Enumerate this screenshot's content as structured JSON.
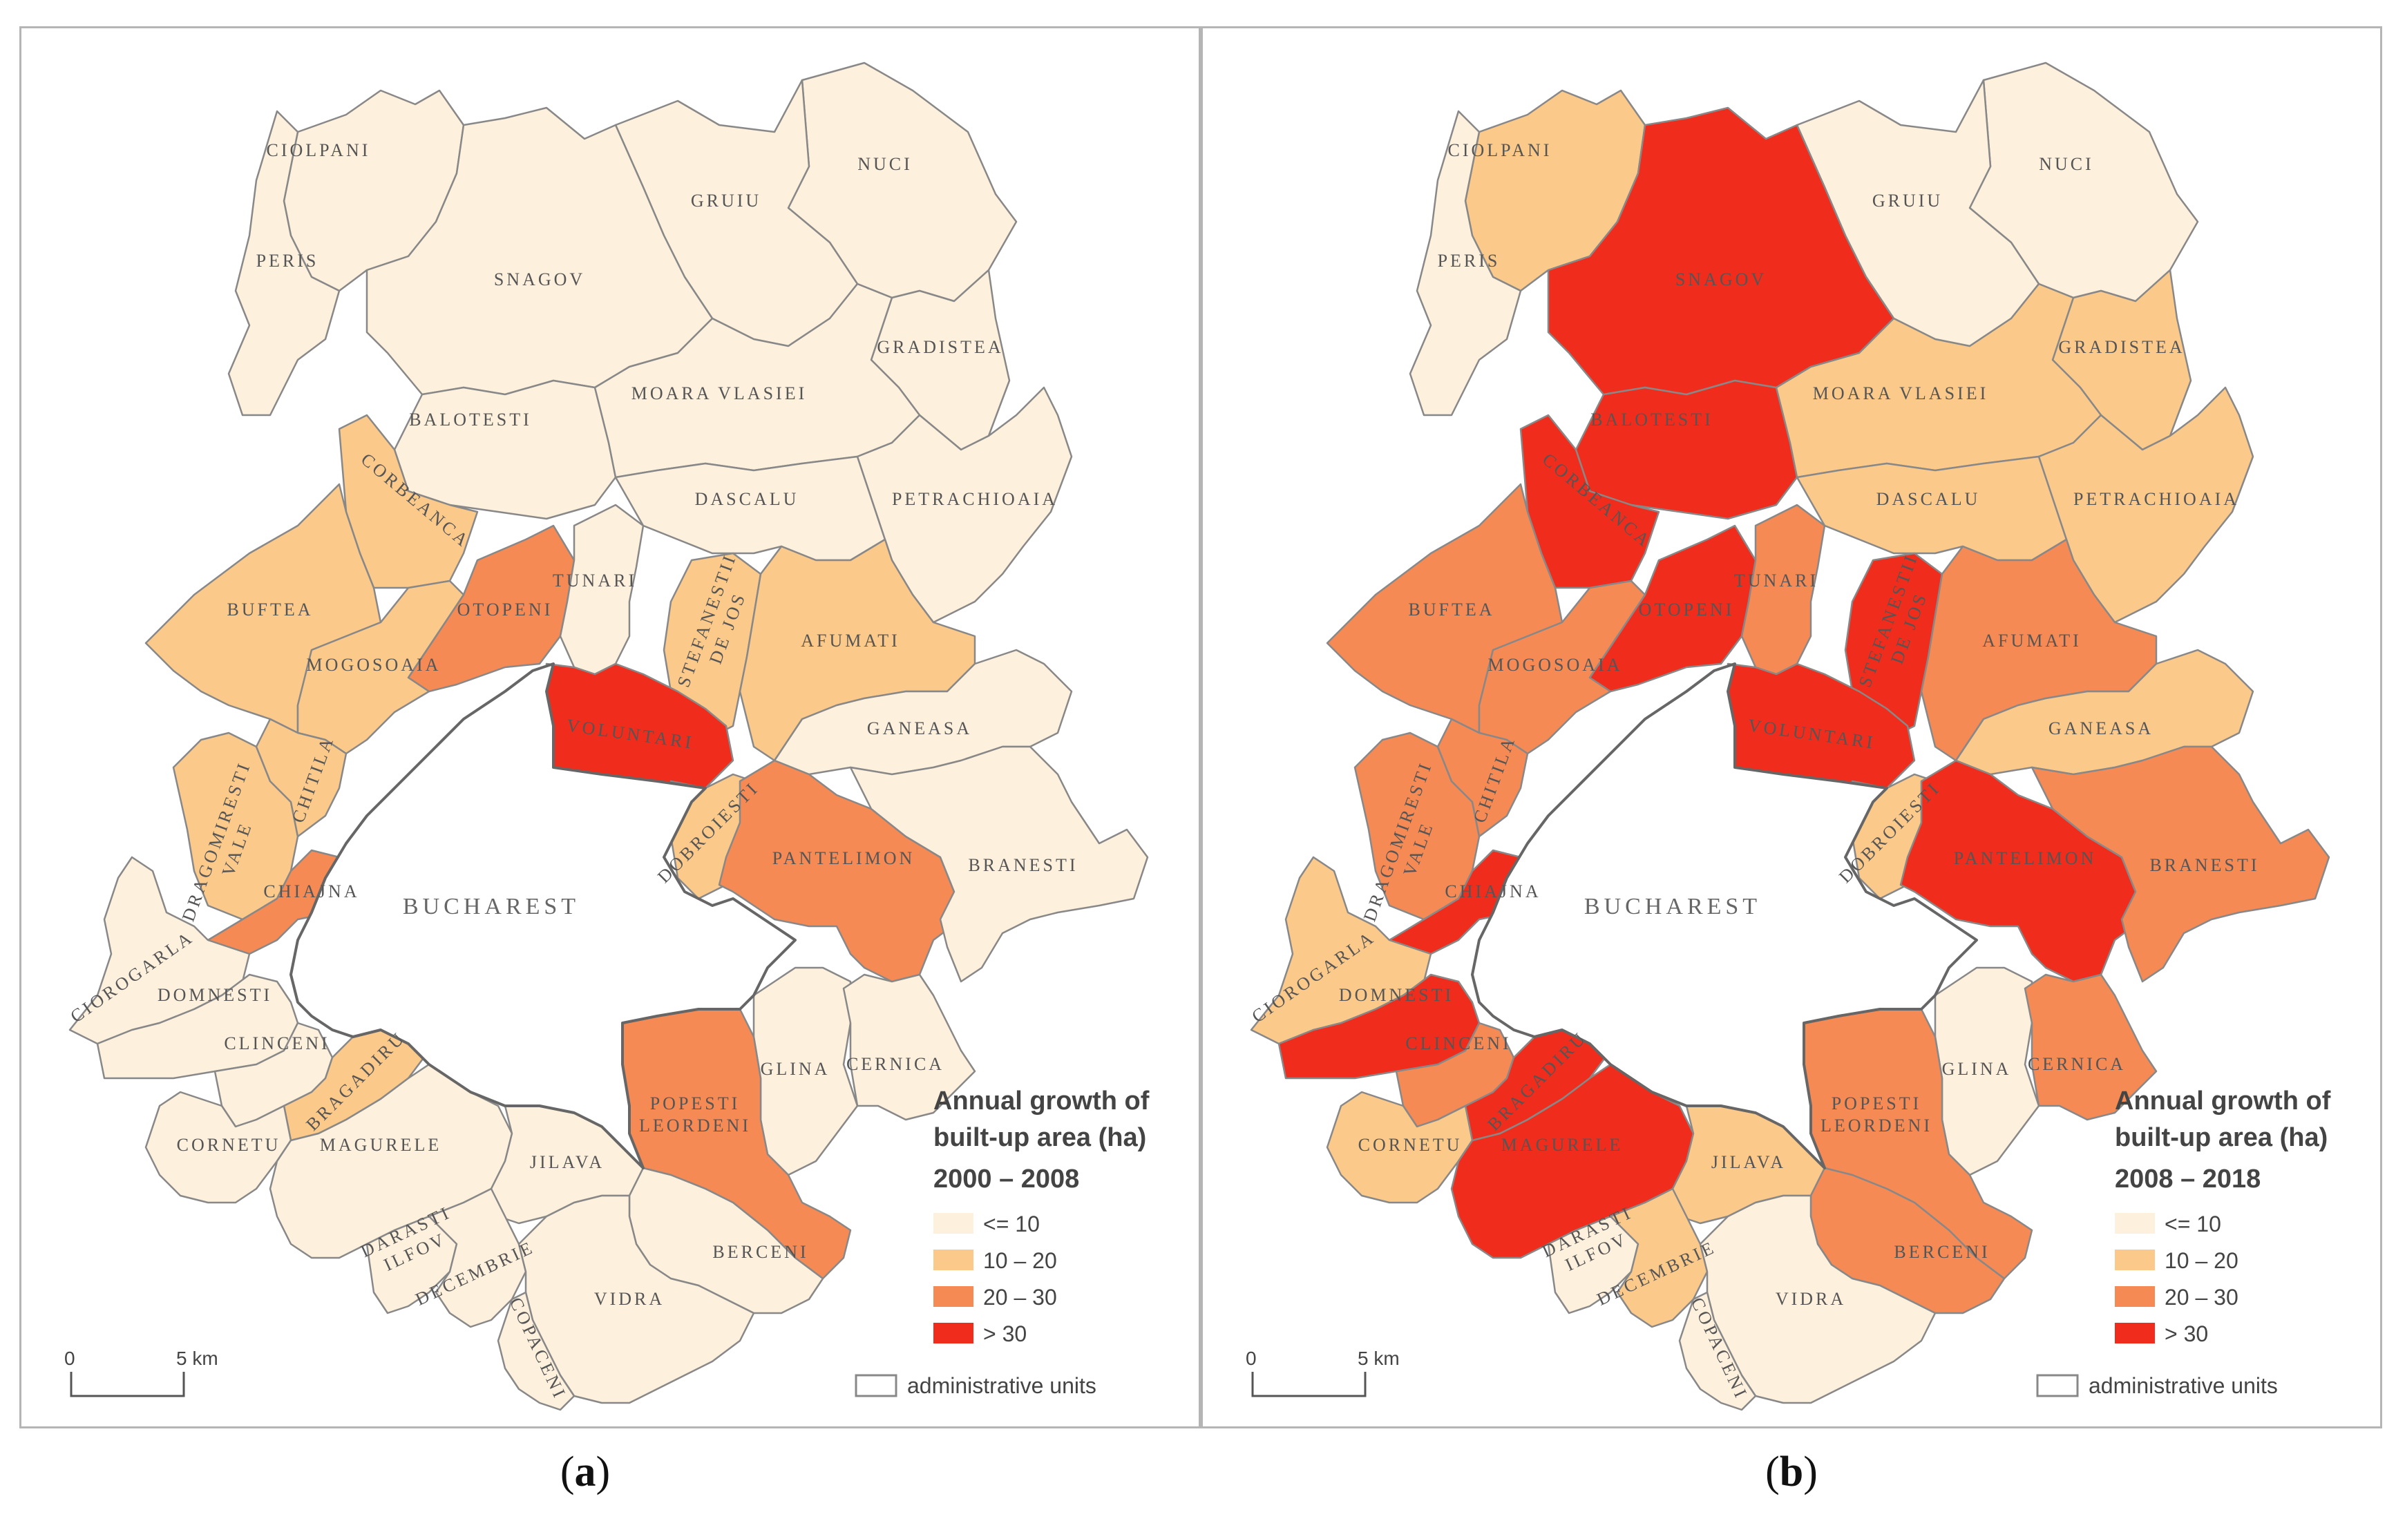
{
  "city": "BUCHAREST",
  "colors": {
    "c1": "#fdf0dd",
    "c2": "#fbc98a",
    "c3": "#f58a55",
    "c4": "#f02d1c",
    "outline": "#888888",
    "city_border": "#666666"
  },
  "legend": {
    "title_line1": "Annual growth of",
    "title_line2": "built-up area (ha)",
    "classes": [
      {
        "key": "c1",
        "label": "<= 10"
      },
      {
        "key": "c2",
        "label": "10 – 20"
      },
      {
        "key": "c3",
        "label": "20 – 30"
      },
      {
        "key": "c4",
        "label": "> 30"
      }
    ],
    "admin_units": "administrative units"
  },
  "scale": {
    "zero": "0",
    "five": "5 km"
  },
  "panels": [
    {
      "id": "a",
      "caption": "a",
      "period": "2000 – 2008",
      "classes": {
        "CIOLPANI": "c1",
        "NUCI": "c1",
        "GRUIU": "c1",
        "PERIS": "c1",
        "SNAGOV": "c1",
        "GRADISTEA": "c1",
        "BALOTESTI": "c1",
        "MOARA VLASIEI": "c1",
        "CORBEANCA": "c2",
        "DASCALU": "c1",
        "PETRACHIOAIA": "c1",
        "BUFTEA": "c2",
        "OTOPENI": "c3",
        "TUNARI": "c1",
        "STEFANESTII DE JOS": "c2",
        "AFUMATI": "c2",
        "MOGOSOAIA": "c2",
        "VOLUNTARI": "c4",
        "GANEASA": "c1",
        "DRAGOMIRESTI VALE": "c2",
        "CHITILA": "c2",
        "DOBROIESTI": "c2",
        "PANTELIMON": "c3",
        "BRANESTI": "c1",
        "CHIAJNA": "c3",
        "CIOROGARLA": "c1",
        "DOMNESTI": "c1",
        "CLINCENI": "c1",
        "BRAGADIRU": "c2",
        "GLINA": "c1",
        "CERNICA": "c1",
        "POPESTI LEORDENI": "c3",
        "CORNETU": "c1",
        "MAGURELE": "c1",
        "JILAVA": "c1",
        "DARASTI ILFOV": "c1",
        "1 DECEMBRIE": "c1",
        "BERCENI": "c1",
        "VIDRA": "c1",
        "COPACENI": "c1"
      }
    },
    {
      "id": "b",
      "caption": "b",
      "period": "2008 – 2018",
      "classes": {
        "CIOLPANI": "c2",
        "NUCI": "c1",
        "GRUIU": "c1",
        "PERIS": "c1",
        "SNAGOV": "c4",
        "GRADISTEA": "c2",
        "BALOTESTI": "c4",
        "MOARA VLASIEI": "c2",
        "CORBEANCA": "c4",
        "DASCALU": "c2",
        "PETRACHIOAIA": "c2",
        "BUFTEA": "c3",
        "OTOPENI": "c4",
        "TUNARI": "c3",
        "STEFANESTII DE JOS": "c4",
        "AFUMATI": "c3",
        "MOGOSOAIA": "c3",
        "VOLUNTARI": "c4",
        "GANEASA": "c2",
        "DRAGOMIRESTI VALE": "c3",
        "CHITILA": "c3",
        "DOBROIESTI": "c2",
        "PANTELIMON": "c4",
        "BRANESTI": "c3",
        "CHIAJNA": "c4",
        "CIOROGARLA": "c2",
        "DOMNESTI": "c4",
        "CLINCENI": "c3",
        "BRAGADIRU": "c4",
        "GLINA": "c1",
        "CERNICA": "c3",
        "POPESTI LEORDENI": "c3",
        "CORNETU": "c2",
        "MAGURELE": "c4",
        "JILAVA": "c2",
        "DARASTI ILFOV": "c1",
        "1 DECEMBRIE": "c2",
        "BERCENI": "c3",
        "VIDRA": "c1",
        "COPACENI": "c1"
      }
    }
  ],
  "units": [
    {
      "name": "CIOLPANI",
      "label": "CIOLPANI"
    },
    {
      "name": "NUCI",
      "label": "NUCI"
    },
    {
      "name": "GRUIU",
      "label": "GRUIU"
    },
    {
      "name": "PERIS",
      "label": "PERIS"
    },
    {
      "name": "SNAGOV",
      "label": "SNAGOV"
    },
    {
      "name": "GRADISTEA",
      "label": "GRADISTEA"
    },
    {
      "name": "BALOTESTI",
      "label": "BALOTESTI"
    },
    {
      "name": "MOARA VLASIEI",
      "label": "MOARA VLASIEI"
    },
    {
      "name": "CORBEANCA",
      "label": "CORBEANCA"
    },
    {
      "name": "DASCALU",
      "label": "DASCALU"
    },
    {
      "name": "PETRACHIOAIA",
      "label": "PETRACHIOAIA"
    },
    {
      "name": "BUFTEA",
      "label": "BUFTEA"
    },
    {
      "name": "OTOPENI",
      "label": "OTOPENI"
    },
    {
      "name": "TUNARI",
      "label": "TUNARI"
    },
    {
      "name": "STEFANESTII DE JOS",
      "label": "STEFANESTII",
      "label2": "DE JOS"
    },
    {
      "name": "AFUMATI",
      "label": "AFUMATI"
    },
    {
      "name": "MOGOSOAIA",
      "label": "MOGOSOAIA"
    },
    {
      "name": "VOLUNTARI",
      "label": "VOLUNTARI"
    },
    {
      "name": "GANEASA",
      "label": "GANEASA"
    },
    {
      "name": "DRAGOMIRESTI VALE",
      "label": "DRAGOMIRESTI",
      "label2": "VALE"
    },
    {
      "name": "CHITILA",
      "label": "CHITILA"
    },
    {
      "name": "DOBROIESTI",
      "label": "DOBROIESTI"
    },
    {
      "name": "PANTELIMON",
      "label": "PANTELIMON"
    },
    {
      "name": "BRANESTI",
      "label": "BRANESTI"
    },
    {
      "name": "CHIAJNA",
      "label": "CHIAJNA"
    },
    {
      "name": "CIOROGARLA",
      "label": "CIOROGARLA"
    },
    {
      "name": "DOMNESTI",
      "label": "DOMNESTI"
    },
    {
      "name": "CLINCENI",
      "label": "CLINCENI"
    },
    {
      "name": "BRAGADIRU",
      "label": "BRAGADIRU"
    },
    {
      "name": "GLINA",
      "label": "GLINA"
    },
    {
      "name": "CERNICA",
      "label": "CERNICA"
    },
    {
      "name": "POPESTI LEORDENI",
      "label": "POPESTI",
      "label2": "LEORDENI"
    },
    {
      "name": "CORNETU",
      "label": "CORNETU"
    },
    {
      "name": "MAGURELE",
      "label": "MAGURELE"
    },
    {
      "name": "JILAVA",
      "label": "JILAVA"
    },
    {
      "name": "DARASTI ILFOV",
      "label": "DARASTI",
      "label2": "ILFOV"
    },
    {
      "name": "1 DECEMBRIE",
      "label": "DECEMBRIE"
    },
    {
      "name": "BERCENI",
      "label": "BERCENI"
    },
    {
      "name": "VIDRA",
      "label": "VIDRA"
    },
    {
      "name": "COPACENI",
      "label": "COPACENI"
    }
  ]
}
